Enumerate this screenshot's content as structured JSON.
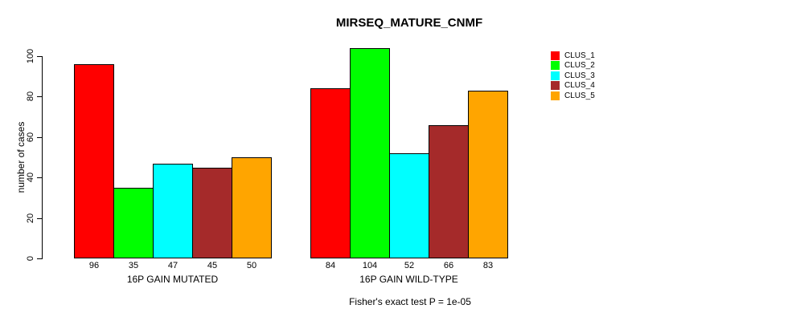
{
  "chart_data": {
    "type": "bar",
    "title": "MIRSEQ_MATURE_CNMF",
    "ylabel": "number of cases",
    "xlabel": "",
    "annotation": "Fisher's exact test P = 1e-05",
    "ylim": [
      0,
      104
    ],
    "yticks": [
      0,
      20,
      40,
      60,
      80,
      100
    ],
    "grid": false,
    "legend_position": "right",
    "bar_value_labels_shown": true,
    "categories": [
      "16P GAIN MUTATED",
      "16P GAIN WILD-TYPE"
    ],
    "series": [
      {
        "name": "CLUS_1",
        "color": "#FF0000",
        "values": [
          96,
          84
        ]
      },
      {
        "name": "CLUS_2",
        "color": "#00FF00",
        "values": [
          35,
          104
        ]
      },
      {
        "name": "CLUS_3",
        "color": "#00FFFF",
        "values": [
          47,
          52
        ]
      },
      {
        "name": "CLUS_4",
        "color": "#A52A2A",
        "values": [
          45,
          66
        ]
      },
      {
        "name": "CLUS_5",
        "color": "#FFA500",
        "values": [
          50,
          83
        ]
      }
    ]
  }
}
